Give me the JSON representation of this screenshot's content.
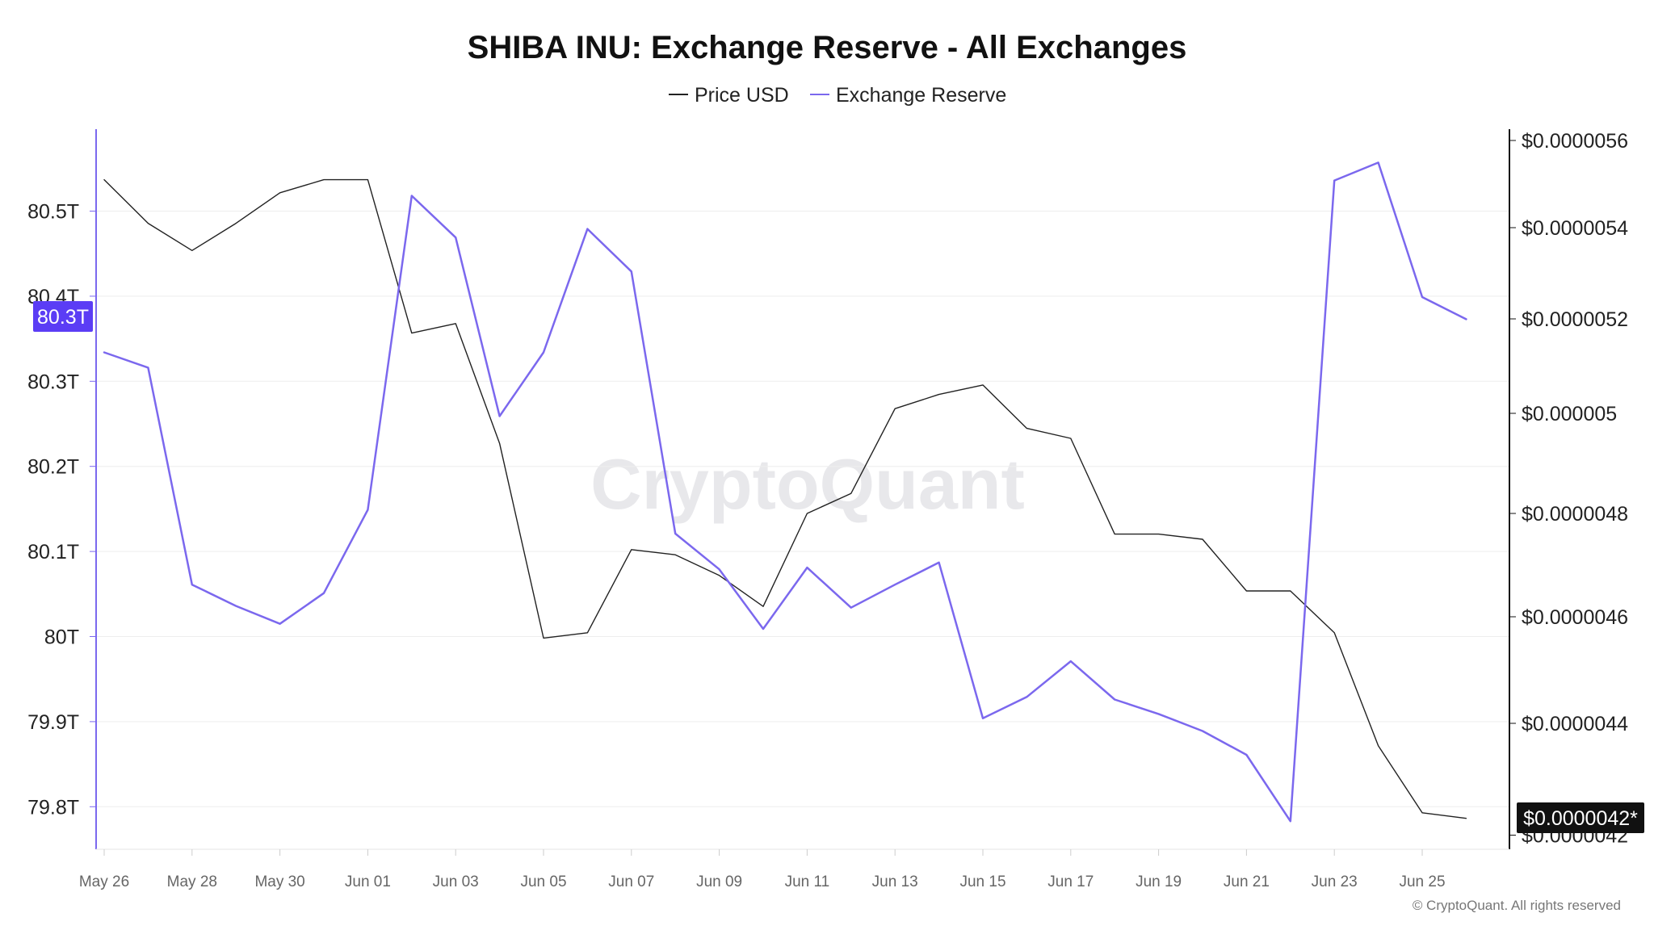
{
  "chart_data": {
    "type": "line",
    "title": "SHIBA INU: Exchange Reserve - All Exchanges",
    "legend": [
      "Price USD",
      "Exchange Reserve"
    ],
    "legend_position": "top-center",
    "x": [
      "May 26",
      "May 27",
      "May 28",
      "May 29",
      "May 30",
      "May 31",
      "Jun 01",
      "Jun 02",
      "Jun 03",
      "Jun 04",
      "Jun 05",
      "Jun 06",
      "Jun 07",
      "Jun 08",
      "Jun 09",
      "Jun 10",
      "Jun 11",
      "Jun 12",
      "Jun 13",
      "Jun 14",
      "Jun 15",
      "Jun 16",
      "Jun 17",
      "Jun 18",
      "Jun 19",
      "Jun 20",
      "Jun 21",
      "Jun 22",
      "Jun 23",
      "Jun 24",
      "Jun 25",
      "Jun 26"
    ],
    "x_tick_labels": [
      "May 26",
      "May 28",
      "May 30",
      "Jun 01",
      "Jun 03",
      "Jun 05",
      "Jun 07",
      "Jun 09",
      "Jun 11",
      "Jun 13",
      "Jun 15",
      "Jun 17",
      "Jun 19",
      "Jun 21",
      "Jun 23",
      "Jun 25"
    ],
    "left_axis": {
      "unit": "T",
      "ylim": [
        79.745,
        80.595
      ],
      "ticks": [
        79.8,
        79.9,
        80.0,
        80.1,
        80.2,
        80.3,
        80.4,
        80.5
      ],
      "tick_labels": [
        "79.8T",
        "79.9T",
        "80T",
        "80.1T",
        "80.2T",
        "80.3T",
        "80.4T",
        "80.5T"
      ]
    },
    "right_axis": {
      "unit": "USD",
      "ticks": [
        4.2e-06,
        4.4e-06,
        4.6e-06,
        4.8e-06,
        5e-06,
        5.2e-06,
        5.4e-06,
        5.6e-06
      ],
      "tick_labels": [
        "$0.0000042",
        "$0.0000044",
        "$0.0000046",
        "$0.0000048",
        "$0.000005",
        "$0.0000052",
        "$0.0000054",
        "$0.0000056"
      ]
    },
    "series": [
      {
        "name": "Price USD",
        "axis": "right",
        "color": "#222222",
        "values": [
          5.51e-06,
          5.41e-06,
          5.35e-06,
          5.41e-06,
          5.48e-06,
          5.51e-06,
          5.51e-06,
          5.17e-06,
          5.19e-06,
          4.94e-06,
          4.56e-06,
          4.57e-06,
          4.73e-06,
          4.72e-06,
          4.68e-06,
          4.62e-06,
          4.8e-06,
          4.84e-06,
          5.01e-06,
          5.04e-06,
          5.06e-06,
          4.97e-06,
          4.95e-06,
          4.76e-06,
          4.76e-06,
          4.75e-06,
          4.65e-06,
          4.65e-06,
          4.57e-06,
          4.36e-06,
          4.24e-06,
          4.23e-06
        ]
      },
      {
        "name": "Exchange Reserve",
        "axis": "left",
        "color": "#7b68ee",
        "values": [
          80.334,
          80.316,
          80.061,
          80.036,
          80.015,
          80.051,
          80.149,
          80.518,
          80.469,
          80.259,
          80.334,
          80.479,
          80.429,
          80.121,
          80.079,
          80.009,
          80.081,
          80.034,
          80.061,
          80.087,
          79.904,
          79.929,
          79.971,
          79.926,
          79.909,
          79.889,
          79.861,
          79.783,
          80.536,
          80.557,
          80.399,
          80.373
        ]
      }
    ],
    "badges": {
      "left": "80.3T",
      "right": "$0.0000042*"
    },
    "watermark": "CryptoQuant",
    "copyright": "© CryptoQuant. All rights reserved"
  }
}
